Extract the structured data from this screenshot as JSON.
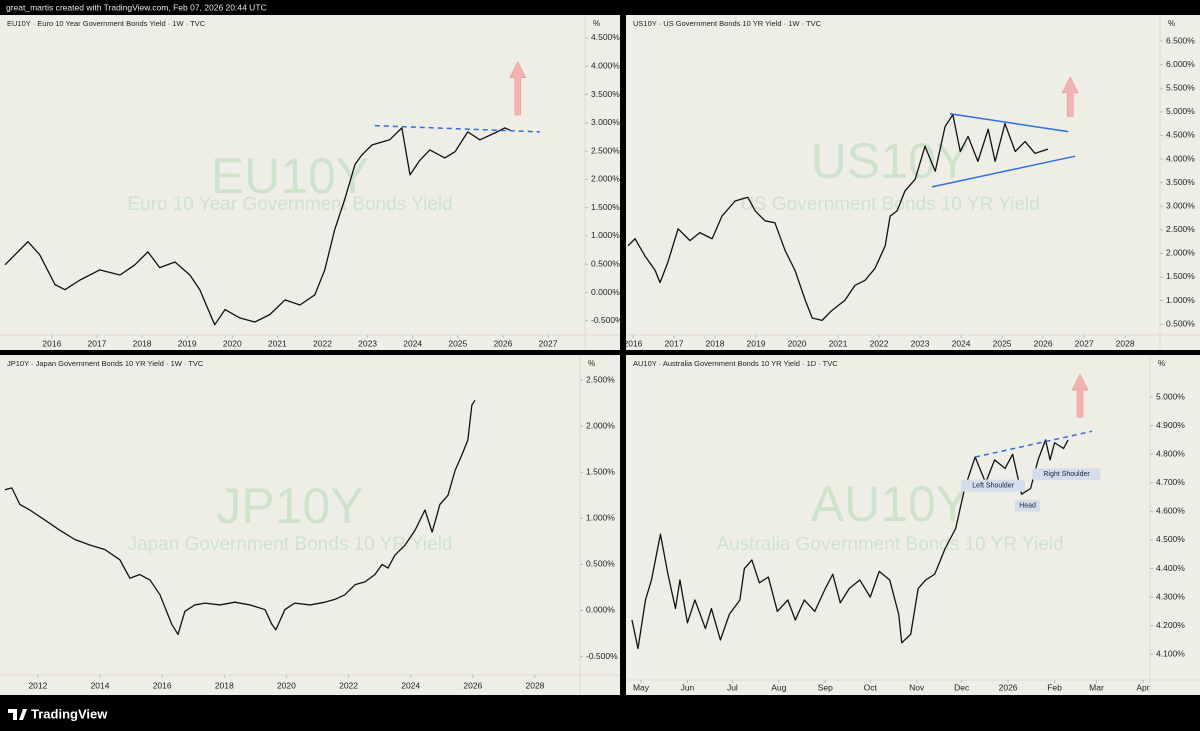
{
  "header": {
    "text": "great_martis created with TradingView.com, Feb 07, 2026 20:44 UTC"
  },
  "footer": {
    "brand": "TradingView"
  },
  "chart_data": [
    {
      "type": "line",
      "title": "EU10Y · Euro 10 Year Government Bonds Yield · 1W · TVC",
      "symbol": "EU10Y",
      "description": "Euro 10 Year Government Bonds Yield",
      "unit": "%",
      "x": [
        2014.96,
        2015.47,
        2015.73,
        2016.07,
        2016.29,
        2016.62,
        2017.06,
        2017.51,
        2017.84,
        2018.13,
        2018.39,
        2018.73,
        2019.06,
        2019.28,
        2019.61,
        2019.84,
        2020.17,
        2020.5,
        2020.83,
        2021.17,
        2021.5,
        2021.83,
        2022.05,
        2022.27,
        2022.49,
        2022.72,
        2022.87,
        2023.1,
        2023.49,
        2023.76,
        2023.94,
        2024.16,
        2024.38,
        2024.71,
        2024.94,
        2025.22,
        2025.49,
        2025.82,
        2026.04,
        2026.16
      ],
      "series": [
        {
          "name": "EU10Y",
          "color": "#111111",
          "values": [
            0.49,
            0.9,
            0.67,
            0.14,
            0.05,
            0.22,
            0.4,
            0.31,
            0.49,
            0.72,
            0.44,
            0.54,
            0.31,
            0.05,
            -0.57,
            -0.3,
            -0.45,
            -0.52,
            -0.39,
            -0.13,
            -0.22,
            -0.04,
            0.4,
            1.11,
            1.64,
            2.26,
            2.43,
            2.61,
            2.7,
            2.91,
            2.08,
            2.34,
            2.52,
            2.38,
            2.49,
            2.84,
            2.7,
            2.82,
            2.91,
            2.87
          ]
        }
      ],
      "xlim": [
        2014.85,
        2027.82
      ],
      "ylim": [
        -0.75,
        4.87
      ],
      "xticks": [
        2016,
        2017,
        2018,
        2019,
        2020,
        2021,
        2022,
        2023,
        2024,
        2025,
        2026,
        2027
      ],
      "yticks": [
        {
          "value": 4.5,
          "label": "4.500%"
        },
        {
          "value": 4,
          "label": "4.000%"
        },
        {
          "value": 3.5,
          "label": "3.500%"
        },
        {
          "value": 3,
          "label": "3.000%"
        },
        {
          "value": 2.5,
          "label": "2.500%"
        },
        {
          "value": 2,
          "label": "2.000%"
        },
        {
          "value": 1.5,
          "label": "1.500%"
        },
        {
          "value": 1,
          "label": "1.000%"
        },
        {
          "value": 0.5,
          "label": "0.500%"
        },
        {
          "value": 0,
          "label": "0.000%"
        },
        {
          "value": -0.5,
          "label": "-0.500%"
        }
      ],
      "trendlines": [
        {
          "x": [
            2023.16,
            2026.82
          ],
          "y": [
            2.95,
            2.84
          ],
          "color": "#2f6fdb",
          "dashed": true
        }
      ],
      "arrows": [
        {
          "x": 2026.33,
          "y": [
            3.14,
            4.08
          ],
          "color": "#f2b4b1"
        }
      ]
    },
    {
      "type": "line",
      "title": "US10Y · US Government Bonds 10 YR Yield · 1W · TVC",
      "symbol": "US10Y",
      "description": "US Government Bonds 10 YR Yield",
      "unit": "%",
      "x": [
        2015.88,
        2016.05,
        2016.29,
        2016.54,
        2016.66,
        2016.85,
        2017.1,
        2017.39,
        2017.63,
        2017.93,
        2018.17,
        2018.49,
        2018.8,
        2018.98,
        2019.22,
        2019.46,
        2019.71,
        2019.95,
        2020.2,
        2020.37,
        2020.61,
        2020.85,
        2021.17,
        2021.41,
        2021.66,
        2021.9,
        2022.15,
        2022.27,
        2022.44,
        2022.63,
        2022.88,
        2023.12,
        2023.37,
        2023.61,
        2023.8,
        2023.98,
        2024.17,
        2024.41,
        2024.66,
        2024.83,
        2025.07,
        2025.32,
        2025.56,
        2025.8,
        2026.12
      ],
      "series": [
        {
          "name": "US10Y",
          "color": "#111111",
          "values": [
            2.16,
            2.31,
            1.95,
            1.64,
            1.38,
            1.81,
            2.52,
            2.27,
            2.44,
            2.31,
            2.79,
            3.11,
            3.19,
            2.9,
            2.69,
            2.65,
            2.06,
            1.64,
            1.01,
            0.63,
            0.58,
            0.79,
            1.01,
            1.32,
            1.43,
            1.68,
            2.16,
            2.79,
            2.9,
            3.32,
            3.57,
            4.27,
            3.74,
            4.69,
            4.94,
            4.16,
            4.48,
            3.95,
            4.63,
            3.95,
            4.75,
            4.16,
            4.37,
            4.12,
            4.21
          ]
        }
      ],
      "xlim": [
        2015.83,
        2028.85
      ],
      "ylim": [
        0.27,
        7.01
      ],
      "xticks": [
        2016,
        2017,
        2018,
        2019,
        2020,
        2021,
        2022,
        2023,
        2024,
        2025,
        2026,
        2027,
        2028
      ],
      "yticks": [
        {
          "value": 6.5,
          "label": "6.500%"
        },
        {
          "value": 6,
          "label": "6.000%"
        },
        {
          "value": 5.5,
          "label": "5.500%"
        },
        {
          "value": 5,
          "label": "5.000%"
        },
        {
          "value": 4.5,
          "label": "4.500%"
        },
        {
          "value": 4,
          "label": "4.000%"
        },
        {
          "value": 3.5,
          "label": "3.500%"
        },
        {
          "value": 3,
          "label": "3.000%"
        },
        {
          "value": 2.5,
          "label": "2.500%"
        },
        {
          "value": 2,
          "label": "2.000%"
        },
        {
          "value": 1.5,
          "label": "1.500%"
        },
        {
          "value": 1,
          "label": "1.000%"
        },
        {
          "value": 0.5,
          "label": "0.500%"
        }
      ],
      "trendlines": [
        {
          "x": [
            2023.73,
            2026.61
          ],
          "y": [
            4.96,
            4.58
          ],
          "color": "#2f6fdb",
          "dashed": false
        },
        {
          "x": [
            2023.29,
            2026.78
          ],
          "y": [
            3.41,
            4.06
          ],
          "color": "#2f6fdb",
          "dashed": false
        }
      ],
      "arrows": [
        {
          "x": 2026.66,
          "y": [
            4.9,
            5.74
          ],
          "color": "#f2b4b1"
        }
      ]
    },
    {
      "type": "line",
      "title": "JP10Y · Japan Government Bonds 10 YR Yield · 1W · TVC",
      "symbol": "JP10Y",
      "description": "Japan Government Bonds 10 YR Yield",
      "unit": "%",
      "x": [
        2010.94,
        2011.16,
        2011.42,
        2011.74,
        2012.23,
        2012.71,
        2013.19,
        2013.67,
        2014.16,
        2014.64,
        2014.96,
        2015.28,
        2015.61,
        2015.93,
        2016.19,
        2016.31,
        2016.51,
        2016.73,
        2017.05,
        2017.38,
        2017.86,
        2018.34,
        2018.83,
        2019.31,
        2019.53,
        2019.66,
        2019.95,
        2020.27,
        2020.76,
        2021.24,
        2021.56,
        2021.88,
        2022.21,
        2022.53,
        2022.85,
        2023.08,
        2023.27,
        2023.49,
        2023.82,
        2024.14,
        2024.46,
        2024.69,
        2024.94,
        2025.2,
        2025.43,
        2025.65,
        2025.84,
        2025.97,
        2026.07
      ],
      "series": [
        {
          "name": "JP10Y",
          "color": "#111111",
          "values": [
            1.31,
            1.33,
            1.15,
            1.09,
            0.98,
            0.87,
            0.77,
            0.71,
            0.66,
            0.55,
            0.35,
            0.39,
            0.33,
            0.17,
            -0.05,
            -0.15,
            -0.26,
            -0.01,
            0.06,
            0.08,
            0.06,
            0.09,
            0.06,
            0.01,
            -0.15,
            -0.21,
            0.01,
            0.08,
            0.06,
            0.09,
            0.12,
            0.17,
            0.28,
            0.31,
            0.39,
            0.5,
            0.46,
            0.6,
            0.71,
            0.87,
            1.09,
            0.85,
            1.15,
            1.25,
            1.52,
            1.69,
            1.85,
            2.23,
            2.28
          ]
        }
      ],
      "xlim": [
        2010.78,
        2029.45
      ],
      "ylim": [
        -0.7,
        2.75
      ],
      "xticks": [
        2012,
        2014,
        2016,
        2018,
        2020,
        2022,
        2024,
        2026,
        2028
      ],
      "yticks": [
        {
          "value": 2.5,
          "label": "2.500%"
        },
        {
          "value": 2,
          "label": "2.000%"
        },
        {
          "value": 1.5,
          "label": "1.500%"
        },
        {
          "value": 1,
          "label": "1.000%"
        },
        {
          "value": 0.5,
          "label": "0.500%"
        },
        {
          "value": 0,
          "label": "0.000%"
        },
        {
          "value": -0.5,
          "label": "-0.500%"
        }
      ]
    },
    {
      "type": "line",
      "title": "AU10Y · Australia Government Bonds 10 YR Yield · 1D · TVC",
      "symbol": "AU10Y",
      "description": "Australia Government Bonds 10 YR Yield",
      "unit": "%",
      "x": [
        -6,
        -2,
        3,
        7,
        13,
        18,
        23,
        26,
        31,
        36,
        43,
        47,
        53,
        59,
        66,
        69,
        74,
        79,
        85,
        91,
        98,
        103,
        109,
        116,
        123,
        128,
        133,
        139,
        146,
        153,
        159,
        166,
        172,
        174,
        180,
        185,
        190,
        196,
        203,
        210,
        216,
        223,
        230,
        236,
        243,
        248,
        254,
        260,
        265,
        270,
        273,
        276,
        282,
        285
      ],
      "series": [
        {
          "name": "AU10Y",
          "color": "#111111",
          "values": [
            4.22,
            4.12,
            4.29,
            4.36,
            4.52,
            4.38,
            4.26,
            4.36,
            4.21,
            4.29,
            4.19,
            4.26,
            4.15,
            4.24,
            4.29,
            4.4,
            4.43,
            4.35,
            4.37,
            4.25,
            4.29,
            4.22,
            4.29,
            4.25,
            4.33,
            4.38,
            4.28,
            4.33,
            4.36,
            4.3,
            4.39,
            4.36,
            4.24,
            4.14,
            4.17,
            4.33,
            4.36,
            4.38,
            4.47,
            4.54,
            4.68,
            4.79,
            4.7,
            4.78,
            4.75,
            4.8,
            4.66,
            4.68,
            4.78,
            4.85,
            4.78,
            4.84,
            4.82,
            4.85
          ]
        }
      ],
      "xlim": [
        -10,
        339.7
      ],
      "ylim": [
        4.01,
        5.14
      ],
      "xticks": [
        {
          "value": 0,
          "label": "May"
        },
        {
          "value": 31,
          "label": "Jun"
        },
        {
          "value": 61,
          "label": "Jul"
        },
        {
          "value": 92,
          "label": "Aug"
        },
        {
          "value": 123,
          "label": "Sep"
        },
        {
          "value": 153,
          "label": "Oct"
        },
        {
          "value": 184,
          "label": "Nov"
        },
        {
          "value": 214,
          "label": "Dec"
        },
        {
          "value": 245,
          "label": "2026"
        },
        {
          "value": 276,
          "label": "Feb"
        },
        {
          "value": 304,
          "label": "Mar"
        },
        {
          "value": 335,
          "label": "Apr"
        }
      ],
      "yticks": [
        {
          "value": 5.0,
          "label": "5.000%"
        },
        {
          "value": 4.9,
          "label": "4.900%"
        },
        {
          "value": 4.8,
          "label": "4.800%"
        },
        {
          "value": 4.7,
          "label": "4.700%"
        },
        {
          "value": 4.6,
          "label": "4.600%"
        },
        {
          "value": 4.5,
          "label": "4.500%"
        },
        {
          "value": 4.4,
          "label": "4.400%"
        },
        {
          "value": 4.3,
          "label": "4.300%"
        },
        {
          "value": 4.2,
          "label": "4.200%"
        },
        {
          "value": 4.1,
          "label": "4.100%"
        }
      ],
      "trendlines": [
        {
          "x": [
            223,
            301
          ],
          "y": [
            4.79,
            4.88
          ],
          "color": "#2f6fdb",
          "dashed": true
        }
      ],
      "arrows": [
        {
          "x": 293,
          "y": [
            4.93,
            5.08
          ],
          "color": "#f2b4b1"
        }
      ],
      "annotations": [
        {
          "text": "Left Shoulder",
          "x": 235,
          "y": 4.69
        },
        {
          "text": "Head",
          "x": 258,
          "y": 4.62
        },
        {
          "text": "Right Shoulder",
          "x": 284,
          "y": 4.73
        }
      ]
    }
  ]
}
